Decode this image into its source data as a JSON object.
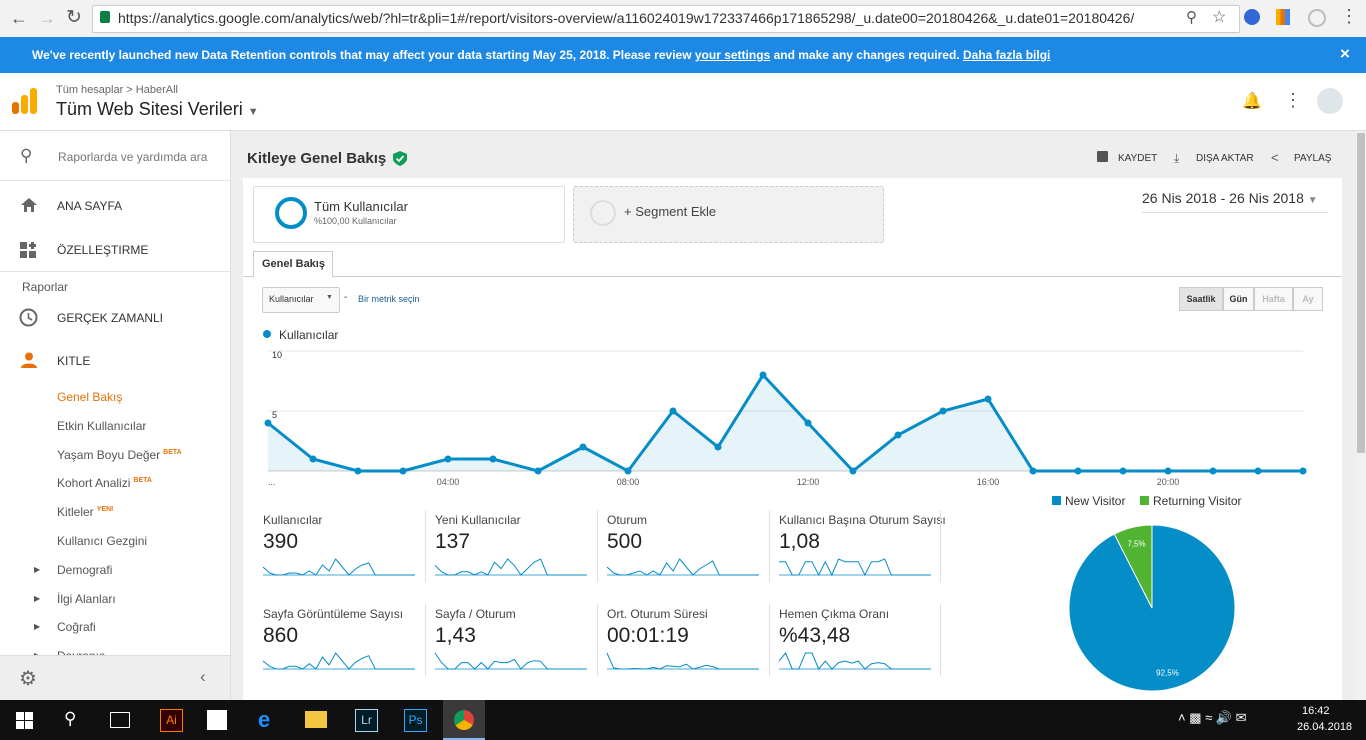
{
  "browser": {
    "url": "https://analytics.google.com/analytics/web/?hl=tr&pli=1#/report/visitors-overview/a116024019w172337466p171865298/_u.date00=20180426&_u.date01=20180426/"
  },
  "banner": {
    "text1": "We've recently launched new Data Retention controls that may affect your data starting May 25, 2018. Please review",
    "link1": "your settings",
    "text2": "and make any changes required.",
    "link2": "Daha fazla bilgi"
  },
  "header": {
    "breadcrumb": "Tüm hesaplar > HaberAll",
    "property": "Tüm Web Sitesi Verileri"
  },
  "sidebar": {
    "search": "Raporlarda ve yardımda ara",
    "home": "ANA SAYFA",
    "custom": "ÖZELLEŞTIRME",
    "reports": "Raporlar",
    "realtime": "GERÇEK ZAMANLI",
    "audience": "KITLE",
    "items": [
      {
        "label": "Genel Bakış"
      },
      {
        "label": "Etkin Kullanıcılar"
      },
      {
        "label": "Yaşam Boyu Değer",
        "badge": "BETA"
      },
      {
        "label": "Kohort Analizi",
        "badge": "BETA"
      },
      {
        "label": "Kitleler",
        "badge": "YENI"
      },
      {
        "label": "Kullanıcı Gezgini"
      }
    ],
    "groups": [
      "Demografi",
      "İlgi Alanları",
      "Coğrafi",
      "Davranış"
    ]
  },
  "content": {
    "title": "Kitleye Genel Bakış",
    "actions": [
      "KAYDET",
      "DIŞA AKTAR",
      "PAYLAŞ"
    ],
    "segment": {
      "name": "Tüm Kullanıcılar",
      "detail": "%100,00 Kullanıcılar",
      "add": "+ Segment Ekle"
    },
    "date_range": "26 Nis 2018 - 26 Nis 2018",
    "tab": "Genel Bakış",
    "metric_select": "Kullanıcılar",
    "separator": "-",
    "metric_pick": "Bir metrik seçin",
    "granularity": [
      "Saatlik",
      "Gün",
      "Hafta",
      "Ay"
    ],
    "metrics": [
      {
        "label": "Kullanıcılar",
        "value": "390",
        "spark": [
          4,
          1,
          0,
          0,
          1,
          1,
          0,
          2,
          0,
          5,
          2,
          8,
          4,
          0,
          3,
          5,
          6,
          0,
          0,
          0,
          0,
          0,
          0,
          0
        ]
      },
      {
        "label": "Yeni Kullanıcılar",
        "value": "137",
        "spark": [
          3,
          1,
          0,
          0,
          1,
          1,
          0,
          1,
          0,
          4,
          2,
          5,
          3,
          0,
          2,
          4,
          5,
          0,
          0,
          0,
          0,
          0,
          0,
          0
        ]
      },
      {
        "label": "Oturum",
        "value": "500",
        "spark": [
          4,
          1,
          0,
          0,
          1,
          2,
          0,
          2,
          0,
          6,
          2,
          8,
          4,
          0,
          3,
          5,
          7,
          0,
          0,
          0,
          0,
          0,
          0,
          0
        ]
      },
      {
        "label": "Kullanıcı Başına Oturum Sayısı",
        "value": "1,08",
        "spark": [
          1,
          1,
          0,
          0,
          1,
          1,
          0,
          1,
          0,
          1.2,
          1,
          1,
          1,
          0,
          1,
          1,
          1.2,
          0,
          0,
          0,
          0,
          0,
          0,
          0
        ]
      },
      {
        "label": "Sayfa Görüntüleme Sayısı",
        "value": "860",
        "spark": [
          6,
          2,
          0,
          0,
          2,
          2,
          0,
          4,
          0,
          9,
          3,
          12,
          6,
          0,
          5,
          8,
          10,
          0,
          0,
          0,
          0,
          0,
          0,
          0
        ]
      },
      {
        "label": "Sayfa / Oturum",
        "value": "1,43",
        "spark": [
          2.5,
          1,
          0,
          0,
          1,
          1,
          0,
          1,
          0,
          1.2,
          1,
          1,
          1.5,
          0,
          1,
          1.3,
          1.2,
          0,
          0,
          0,
          0,
          0,
          0,
          0
        ]
      },
      {
        "label": "Ort. Oturum Süresi",
        "value": "00:01:19",
        "spark": [
          300,
          20,
          0,
          0,
          10,
          5,
          0,
          30,
          0,
          60,
          50,
          40,
          90,
          0,
          30,
          70,
          45,
          0,
          0,
          0,
          0,
          0,
          0,
          0
        ]
      },
      {
        "label": "Hemen Çıkma Oranı",
        "value": "%43,48",
        "spark": [
          50,
          100,
          0,
          0,
          100,
          100,
          0,
          50,
          0,
          40,
          50,
          37,
          50,
          0,
          33,
          40,
          33,
          0,
          0,
          0,
          0,
          0,
          0,
          0
        ]
      }
    ]
  },
  "taskbar": {
    "apps": [
      "Ai",
      "Lr",
      "Ps"
    ],
    "time": "16:42",
    "date": "26.04.2018"
  },
  "chart_data": [
    {
      "type": "line",
      "categories": [
        "...",
        null,
        null,
        null,
        "04:00",
        null,
        null,
        null,
        "08:00",
        null,
        null,
        null,
        "12:00",
        null,
        null,
        null,
        "16:00",
        null,
        null,
        null,
        "20:00",
        null,
        null,
        null
      ],
      "series": [
        {
          "name": "Kullanıcılar",
          "color": "#058dc7",
          "values": [
            4,
            1,
            0,
            0,
            1,
            1,
            0,
            2,
            0,
            5,
            2,
            8,
            4,
            0,
            3,
            5,
            6,
            0,
            0,
            0,
            0,
            0,
            0,
            0
          ]
        }
      ],
      "ylim": [
        0,
        10
      ],
      "yticks": [
        5,
        10
      ],
      "grid": true
    },
    {
      "type": "pie",
      "categories": [
        "New Visitor",
        "Returning Visitor"
      ],
      "values": [
        92.5,
        7.5
      ],
      "value_labels": [
        "92,5%",
        "7,5%"
      ],
      "colors": [
        "#058dc7",
        "#50b432"
      ],
      "legend": "top"
    }
  ]
}
